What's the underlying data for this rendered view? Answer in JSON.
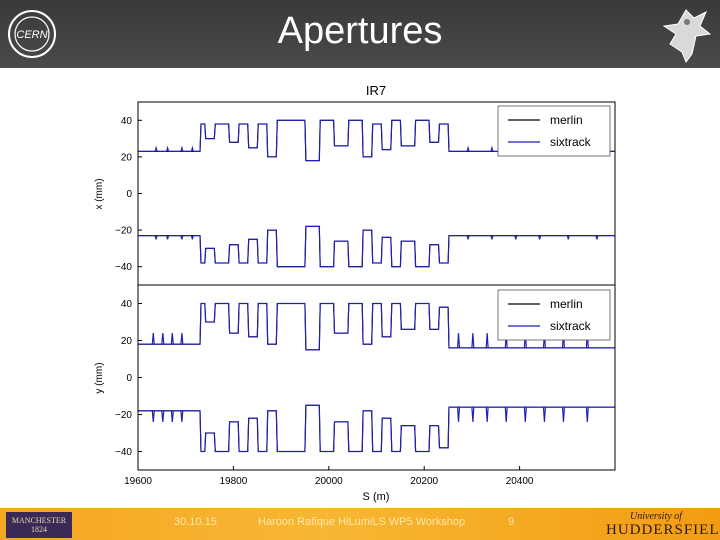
{
  "header": {
    "title": "Apertures"
  },
  "footer": {
    "date": "30.10.15",
    "author": "Haroon Rafique HiLumiLS WP5 Workshop",
    "page": "9",
    "manchester_logo_text": "MANCHESTER 1824",
    "huddersfield_line1": "University of",
    "huddersfield_line2": "HUDDERSFIELD"
  },
  "chart_data": [
    {
      "type": "line",
      "title": "IR7",
      "xlabel": "",
      "ylabel": "x (mm)",
      "xlim": [
        19600,
        20600
      ],
      "ylim": [
        -50,
        50
      ],
      "yticks": [
        -40,
        -20,
        0,
        20,
        40
      ],
      "ytick_labels": [
        "−40",
        "−20",
        "0",
        "20",
        "40"
      ],
      "legend_position": "top-right",
      "series": [
        {
          "name": "merlin",
          "color": "#000000",
          "x": [
            19600,
            19730,
            19732,
            19740,
            19742,
            19760,
            19762,
            19790,
            19792,
            19810,
            19812,
            19830,
            19832,
            19850,
            19852,
            19870,
            19872,
            19890,
            19892,
            19950,
            19952,
            19980,
            19982,
            20010,
            20012,
            20040,
            20042,
            20070,
            20072,
            20090,
            20092,
            20110,
            20112,
            20130,
            20132,
            20150,
            20152,
            20180,
            20182,
            20210,
            20212,
            20230,
            20232,
            20250,
            20252,
            20600
          ],
          "values": [
            23,
            23,
            38,
            38,
            30,
            30,
            38,
            38,
            28,
            28,
            38,
            38,
            25,
            25,
            38,
            38,
            20,
            20,
            40,
            40,
            18,
            18,
            40,
            40,
            26,
            26,
            40,
            40,
            20,
            20,
            38,
            38,
            24,
            24,
            40,
            40,
            26,
            26,
            40,
            40,
            28,
            28,
            38,
            38,
            23,
            23
          ]
        },
        {
          "name": "sixtrack",
          "color": "#1f1fb4",
          "x": [
            19600,
            19636,
            19638,
            19640,
            19660,
            19662,
            19664,
            19690,
            19692,
            19694,
            19712,
            19714,
            19716,
            19730,
            19732,
            19740,
            19742,
            19760,
            19762,
            19790,
            19792,
            19810,
            19812,
            19830,
            19832,
            19850,
            19852,
            19870,
            19872,
            19890,
            19892,
            19950,
            19952,
            19980,
            19982,
            20010,
            20012,
            20040,
            20042,
            20070,
            20072,
            20090,
            20092,
            20110,
            20112,
            20130,
            20132,
            20150,
            20152,
            20180,
            20182,
            20210,
            20212,
            20230,
            20232,
            20250,
            20252,
            20290,
            20292,
            20294,
            20340,
            20342,
            20344,
            20390,
            20392,
            20394,
            20440,
            20442,
            20444,
            20500,
            20502,
            20504,
            20560,
            20562,
            20564,
            20600
          ],
          "values": [
            23,
            23,
            25,
            23,
            23,
            25,
            23,
            23,
            25,
            23,
            23,
            25,
            23,
            23,
            38,
            38,
            30,
            30,
            38,
            38,
            28,
            28,
            38,
            38,
            25,
            25,
            38,
            38,
            20,
            20,
            40,
            40,
            18,
            18,
            40,
            40,
            26,
            26,
            40,
            40,
            20,
            20,
            38,
            38,
            24,
            24,
            40,
            40,
            26,
            26,
            40,
            40,
            28,
            28,
            38,
            38,
            23,
            23,
            25,
            23,
            23,
            25,
            23,
            23,
            25,
            23,
            23,
            25,
            23,
            23,
            25,
            23,
            23,
            25,
            23,
            23
          ]
        }
      ]
    },
    {
      "type": "line",
      "title": "",
      "xlabel": "S (m)",
      "ylabel": "y (mm)",
      "xlim": [
        19600,
        20600
      ],
      "ylim": [
        -50,
        50
      ],
      "xticks": [
        19600,
        19800,
        20000,
        20200,
        20400
      ],
      "xtick_labels": [
        "19600",
        "19800",
        "20000",
        "20200",
        "20400"
      ],
      "yticks": [
        -40,
        -20,
        0,
        20,
        40
      ],
      "ytick_labels": [
        "−40",
        "−20",
        "0",
        "20",
        "40"
      ],
      "legend_position": "top-right",
      "series": [
        {
          "name": "merlin",
          "color": "#000000",
          "x": [
            19600,
            19730,
            19732,
            19740,
            19742,
            19760,
            19762,
            19790,
            19792,
            19810,
            19812,
            19830,
            19832,
            19850,
            19852,
            19870,
            19872,
            19890,
            19892,
            19950,
            19952,
            19980,
            19982,
            20010,
            20012,
            20040,
            20042,
            20070,
            20072,
            20090,
            20092,
            20110,
            20112,
            20130,
            20132,
            20150,
            20152,
            20180,
            20182,
            20210,
            20212,
            20230,
            20232,
            20250,
            20252,
            20600
          ],
          "values": [
            18,
            18,
            40,
            40,
            30,
            30,
            40,
            40,
            24,
            24,
            40,
            40,
            22,
            22,
            40,
            40,
            18,
            18,
            40,
            40,
            15,
            15,
            40,
            40,
            24,
            24,
            40,
            40,
            18,
            18,
            40,
            40,
            22,
            22,
            40,
            40,
            26,
            26,
            40,
            40,
            26,
            26,
            38,
            38,
            16,
            16
          ]
        },
        {
          "name": "sixtrack",
          "color": "#1f1fb4",
          "x": [
            19600,
            19630,
            19632,
            19634,
            19650,
            19652,
            19654,
            19670,
            19672,
            19674,
            19690,
            19692,
            19694,
            19730,
            19732,
            19740,
            19742,
            19760,
            19762,
            19790,
            19792,
            19810,
            19812,
            19830,
            19832,
            19850,
            19852,
            19870,
            19872,
            19890,
            19892,
            19950,
            19952,
            19980,
            19982,
            20010,
            20012,
            20040,
            20042,
            20070,
            20072,
            20090,
            20092,
            20110,
            20112,
            20130,
            20132,
            20150,
            20152,
            20180,
            20182,
            20210,
            20212,
            20230,
            20232,
            20250,
            20252,
            20270,
            20272,
            20274,
            20300,
            20302,
            20304,
            20330,
            20332,
            20334,
            20370,
            20372,
            20374,
            20410,
            20412,
            20414,
            20450,
            20452,
            20454,
            20490,
            20492,
            20494,
            20540,
            20542,
            20544,
            20600
          ],
          "values": [
            18,
            18,
            24,
            18,
            18,
            24,
            18,
            18,
            24,
            18,
            18,
            24,
            18,
            18,
            40,
            40,
            30,
            30,
            40,
            40,
            24,
            24,
            40,
            40,
            22,
            22,
            40,
            40,
            18,
            18,
            40,
            40,
            15,
            15,
            40,
            40,
            24,
            24,
            40,
            40,
            18,
            18,
            40,
            40,
            22,
            22,
            40,
            40,
            26,
            26,
            40,
            40,
            26,
            26,
            38,
            38,
            16,
            16,
            24,
            16,
            16,
            24,
            16,
            16,
            24,
            16,
            16,
            24,
            16,
            16,
            24,
            16,
            16,
            24,
            16,
            16,
            24,
            16,
            16,
            24,
            16,
            16
          ]
        }
      ]
    }
  ]
}
